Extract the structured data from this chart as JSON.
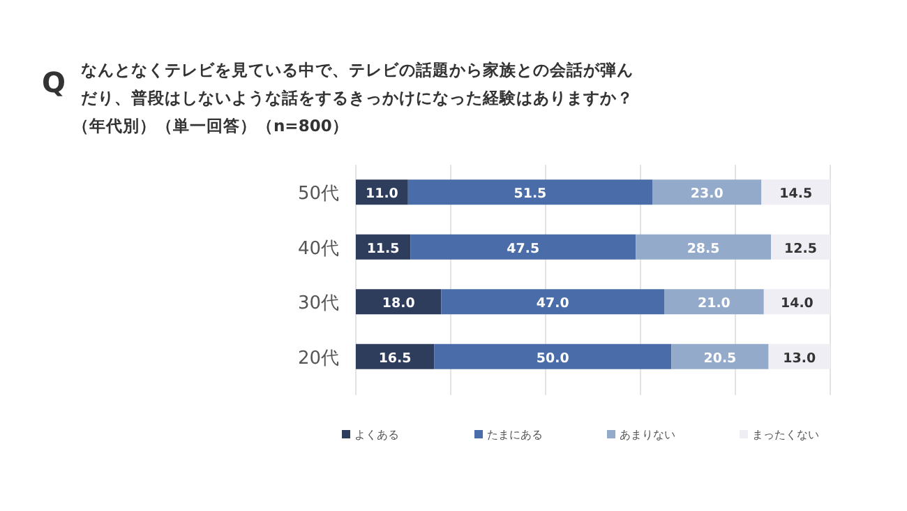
{
  "chart_data": {
    "type": "bar",
    "orientation": "horizontal",
    "stacked": true,
    "title": "なんとなくテレビを見ている中で、テレビの話題から家族との会話が弾んだり、普段はしないような話をするきっかけになった経験はありますか？",
    "subtitle": "（年代別）（単一回答）（n=800）",
    "annotations": [
      "Q"
    ],
    "categories": [
      "50代",
      "40代",
      "30代",
      "20代"
    ],
    "series": [
      {
        "name": "よくある",
        "color": "#2e3d5c",
        "values": [
          11.0,
          11.5,
          18.0,
          16.5
        ],
        "value_labels": [
          "11.0",
          "11.5",
          "18.0",
          "16.5"
        ]
      },
      {
        "name": "たまにある",
        "color": "#4a6ca8",
        "values": [
          51.5,
          47.5,
          47.0,
          50.0
        ],
        "value_labels": [
          "51.5",
          "47.5",
          "47.0",
          "50.0"
        ]
      },
      {
        "name": "あまりない",
        "color": "#94aacb",
        "values": [
          23.0,
          28.5,
          21.0,
          20.5
        ],
        "value_labels": [
          "23.0",
          "28.5",
          "21.0",
          "20.5"
        ]
      },
      {
        "name": "まったくない",
        "color": "#eeeef4",
        "values": [
          14.5,
          12.5,
          14.0,
          13.0
        ],
        "value_labels": [
          "14.5",
          "12.5",
          "14.0",
          "13.0"
        ]
      }
    ],
    "xlim": [
      0,
      100
    ],
    "xticks": [
      {
        "value": 0,
        "label": null
      },
      {
        "value": 20,
        "label": null
      },
      {
        "value": 40,
        "label": null
      },
      {
        "value": 60,
        "label": null
      },
      {
        "value": 80,
        "label": null
      },
      {
        "value": 100,
        "label": null
      }
    ],
    "grid": "x",
    "tick_labels": "y",
    "legend": "bottom"
  }
}
